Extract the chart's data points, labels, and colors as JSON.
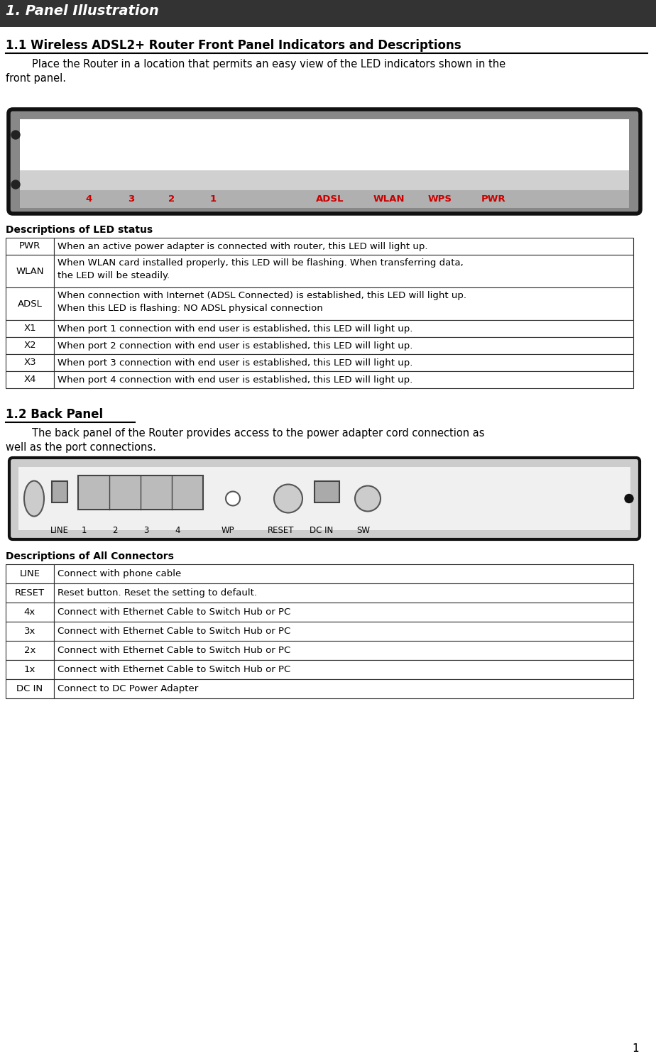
{
  "page_title": "1. Panel Illustration",
  "page_title_bg": "#333333",
  "page_title_color": "#ffffff",
  "section1_title": "1.1 Wireless ADSL2+ Router Front Panel Indicators and Descriptions",
  "section1_line1": "        Place the Router in a location that permits an easy view of the LED indicators shown in the",
  "section1_line2": "front panel.",
  "front_panel_labels": [
    "4",
    "3",
    "2",
    "1",
    "ADSL",
    "WLAN",
    "WPS",
    "PWR"
  ],
  "front_panel_label_color": "#cc0000",
  "led_table_title": "Descriptions of LED status",
  "led_table": [
    [
      "PWR",
      "When an active power adapter is connected with router, this LED will light up.",
      1
    ],
    [
      "WLAN",
      "When WLAN card installed properly, this LED will be flashing. When transferring data,\nthe LED will be steadily.",
      2
    ],
    [
      "ADSL",
      "When connection with Internet (ADSL Connected) is established, this LED will light up.\nWhen this LED is flashing: NO ADSL physical connection",
      2
    ],
    [
      "X1",
      "When port 1 connection with end user is established, this LED will light up.",
      1
    ],
    [
      "X2",
      "When port 2 connection with end user is established, this LED will light up.",
      1
    ],
    [
      "X3",
      "When port 3 connection with end user is established, this LED will light up.",
      1
    ],
    [
      "X4",
      "When port 4 connection with end user is established, this LED will light up.",
      1
    ]
  ],
  "section2_title": "1.2 Back Panel",
  "section2_line1": "        The back panel of the Router provides access to the power adapter cord connection as",
  "section2_line2": "well as the port connections.",
  "back_panel_label_color": "#000000",
  "conn_table_title": "Descriptions of All Connectors",
  "conn_table": [
    [
      "LINE",
      "Connect with phone cable"
    ],
    [
      "RESET",
      "Reset button. Reset the setting to default."
    ],
    [
      "4x",
      "Connect with Ethernet Cable to Switch Hub or PC"
    ],
    [
      "3x",
      "Connect with Ethernet Cable to Switch Hub or PC"
    ],
    [
      "2x",
      "Connect with Ethernet Cable to Switch Hub or PC"
    ],
    [
      "1x",
      "Connect with Ethernet Cable to Switch Hub or PC"
    ],
    [
      "DC IN",
      "Connect to DC Power Adapter"
    ]
  ],
  "page_number": "1",
  "bg_color": "#ffffff",
  "text_color": "#000000"
}
